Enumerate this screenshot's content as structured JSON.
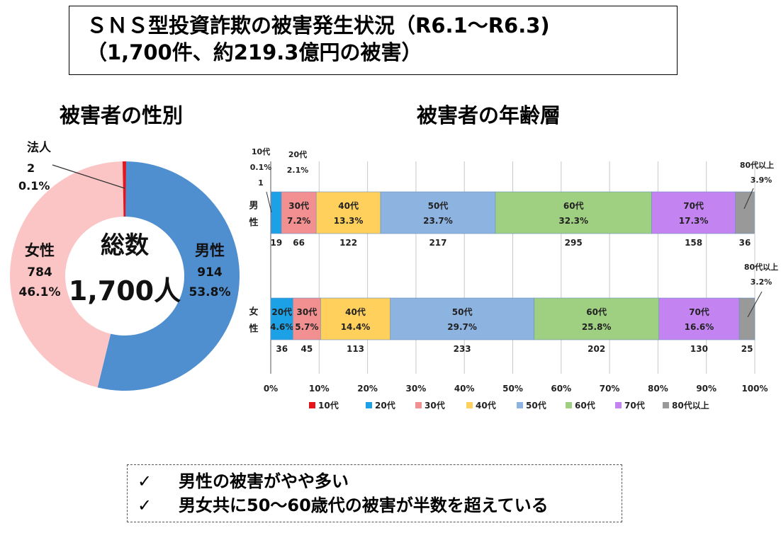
{
  "header": {
    "title_line1": "ＳＮＳ型投資詐欺の被害発生状況（R6.1～R6.3)",
    "title_line2": "（1,700件、約219.3億円の被害）"
  },
  "summary": {
    "check_symbol": "✓",
    "lines": [
      "男性の被害がやや多い",
      "男女共に50～60歳代の被害が半数を超えている"
    ]
  },
  "colors": {
    "male": "#4f8fd0",
    "female": "#fcc5c5",
    "corporate": "#e8141c",
    "age": {
      "10代": "#e8141c",
      "20代": "#1da1e6",
      "30代": "#f28f90",
      "40代": "#ffd05c",
      "50代": "#8db3e0",
      "60代": "#9fd082",
      "70代": "#c384f2",
      "80代以上": "#999999"
    }
  },
  "chart_data": [
    {
      "type": "pie",
      "title": "被害者の性別",
      "center_label": "総数",
      "center_value": "1,700人",
      "slices": [
        {
          "name": "男性",
          "count": 914,
          "count_label": "914",
          "percent_label": "53.8%",
          "value": 53.8
        },
        {
          "name": "女性",
          "count": 784,
          "count_label": "784",
          "percent_label": "46.1%",
          "value": 46.1
        },
        {
          "name": "法人",
          "count": 2,
          "count_label": "2",
          "percent_label": "0.1%",
          "value": 0.1
        }
      ]
    },
    {
      "type": "bar",
      "orientation": "horizontal",
      "stacked": "percent",
      "title": "被害者の年齢層",
      "categories": [
        "男性",
        "女性"
      ],
      "xlim": [
        0,
        100
      ],
      "x_ticks": [
        "0%",
        "10%",
        "20%",
        "30%",
        "40%",
        "50%",
        "60%",
        "70%",
        "80%",
        "90%",
        "100%"
      ],
      "grid": true,
      "legend_position": "bottom",
      "series": [
        {
          "name": "10代",
          "values": [
            0.1,
            0
          ],
          "counts": [
            1,
            0
          ],
          "labels": [
            "0.1%",
            ""
          ],
          "count_labels": [
            "1",
            ""
          ]
        },
        {
          "name": "20代",
          "values": [
            2.1,
            4.6
          ],
          "counts": [
            19,
            36
          ],
          "labels": [
            "2.1%",
            "4.6%"
          ],
          "count_labels": [
            "19",
            "36"
          ]
        },
        {
          "name": "30代",
          "values": [
            7.2,
            5.7
          ],
          "counts": [
            66,
            45
          ],
          "labels": [
            "7.2%",
            "5.7%"
          ],
          "count_labels": [
            "66",
            "45"
          ]
        },
        {
          "name": "40代",
          "values": [
            13.3,
            14.4
          ],
          "counts": [
            122,
            113
          ],
          "labels": [
            "13.3%",
            "14.4%"
          ],
          "count_labels": [
            "122",
            "113"
          ]
        },
        {
          "name": "50代",
          "values": [
            23.7,
            29.7
          ],
          "counts": [
            217,
            233
          ],
          "labels": [
            "23.7%",
            "29.7%"
          ],
          "count_labels": [
            "217",
            "233"
          ]
        },
        {
          "name": "60代",
          "values": [
            32.3,
            25.8
          ],
          "counts": [
            295,
            202
          ],
          "labels": [
            "32.3%",
            "25.8%"
          ],
          "count_labels": [
            "295",
            "202"
          ]
        },
        {
          "name": "70代",
          "values": [
            17.3,
            16.6
          ],
          "counts": [
            158,
            130
          ],
          "labels": [
            "17.3%",
            "16.6%"
          ],
          "count_labels": [
            "158",
            "130"
          ]
        },
        {
          "name": "80代以上",
          "values": [
            3.9,
            3.2
          ],
          "counts": [
            36,
            25
          ],
          "labels": [
            "3.9%",
            "3.2%"
          ],
          "count_labels": [
            "36",
            "25"
          ]
        }
      ]
    }
  ]
}
